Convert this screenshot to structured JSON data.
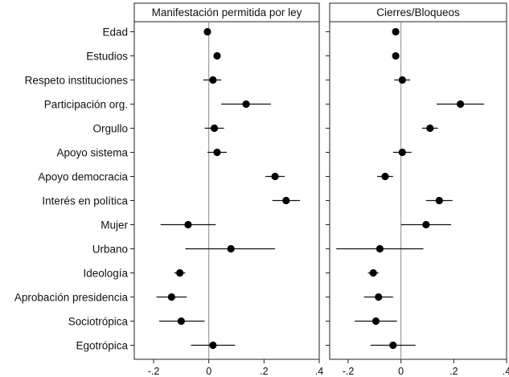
{
  "chart_data": {
    "type": "scatter",
    "subtype": "coefficient-plot",
    "categories": [
      "Edad",
      "Estudios",
      "Respeto instituciones",
      "Participación org.",
      "Orgullo",
      "Apoyo sistema",
      "Apoyo democracia",
      "Interés en política",
      "Mujer",
      "Urbano",
      "Ideología",
      "Aprobación presidencia",
      "Sociotrópica",
      "Egotrópica"
    ],
    "xlim": [
      -0.27,
      0.4
    ],
    "xticks": [
      -0.2,
      0,
      0.2,
      0.4
    ],
    "xtick_labels": [
      "-.2",
      "0",
      ".2",
      ".4"
    ],
    "reference_line": 0,
    "grid": false,
    "panels": [
      {
        "title": "Manifestación permitida por ley",
        "estimates": [
          -0.005,
          0.03,
          0.015,
          0.135,
          0.02,
          0.03,
          0.24,
          0.28,
          -0.075,
          0.08,
          -0.105,
          -0.135,
          -0.1,
          0.015
        ],
        "lower": [
          -0.005,
          0.03,
          -0.02,
          0.045,
          -0.015,
          -0.005,
          0.205,
          0.23,
          -0.175,
          -0.085,
          -0.125,
          -0.19,
          -0.18,
          -0.065
        ],
        "upper": [
          -0.005,
          0.03,
          0.045,
          0.225,
          0.055,
          0.065,
          0.275,
          0.33,
          0.025,
          0.24,
          -0.085,
          -0.08,
          -0.015,
          0.095
        ]
      },
      {
        "title": "Cierres/Bloqueos",
        "estimates": [
          -0.02,
          -0.02,
          0.005,
          0.225,
          0.11,
          0.005,
          -0.06,
          0.145,
          0.095,
          -0.08,
          -0.105,
          -0.085,
          -0.095,
          -0.03
        ],
        "lower": [
          -0.02,
          -0.02,
          -0.025,
          0.135,
          0.08,
          -0.03,
          -0.09,
          0.095,
          0.0,
          -0.245,
          -0.125,
          -0.14,
          -0.175,
          -0.115
        ],
        "upper": [
          -0.02,
          -0.02,
          0.035,
          0.315,
          0.14,
          0.04,
          -0.03,
          0.195,
          0.19,
          0.085,
          -0.085,
          -0.03,
          -0.015,
          0.055
        ]
      }
    ]
  }
}
